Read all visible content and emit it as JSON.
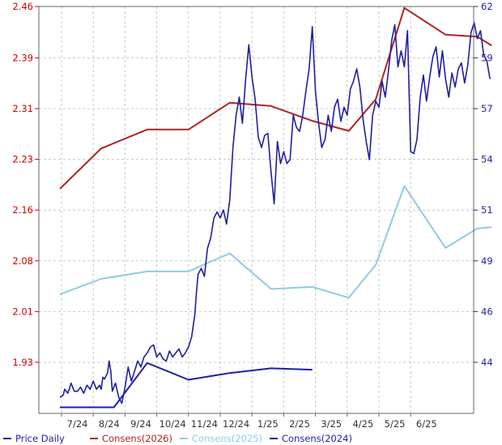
{
  "chart_data": {
    "type": "line",
    "x_ticks": [
      "7/24",
      "8/24",
      "9/24",
      "10/24",
      "11/24",
      "12/24",
      "1/25",
      "2/25",
      "3/25",
      "4/25",
      "5/25",
      "6/25"
    ],
    "y_left": {
      "ylim": [
        1.855,
        2.46
      ],
      "ticks": [
        "1.93",
        "2.01",
        "2.08",
        "2.16",
        "2.23",
        "2.31",
        "2.39",
        "2.46"
      ]
    },
    "y_right": {
      "ylim": [
        41.8,
        62
      ],
      "ticks": [
        "44",
        "46",
        "49",
        "51",
        "54",
        "57",
        "59",
        "62"
      ]
    },
    "grid": true,
    "legend_position": "bottom",
    "colors": {
      "price": "#1f1f9f",
      "consens_2026": "#b22222",
      "consens_2025": "#8dcde0",
      "consens_2024": "#1f1f9f",
      "left_axis": "#cc0000",
      "right_axis": "#1f1f9f",
      "grid": "#c8c8c8"
    },
    "series": [
      {
        "name": "Price Daily",
        "key": "price",
        "axis": "right",
        "values": [
          [
            6.9,
            42.6
          ],
          [
            7.1,
            42.7
          ],
          [
            7.2,
            43.0
          ],
          [
            7.4,
            42.8
          ],
          [
            7.6,
            43.3
          ],
          [
            7.8,
            42.9
          ],
          [
            8.0,
            42.9
          ],
          [
            8.2,
            43.1
          ],
          [
            8.4,
            42.8
          ],
          [
            8.6,
            43.2
          ],
          [
            8.8,
            43.0
          ],
          [
            9.0,
            43.4
          ],
          [
            9.2,
            43.0
          ],
          [
            9.4,
            43.2
          ],
          [
            9.5,
            43.0
          ],
          [
            9.6,
            43.6
          ],
          [
            9.7,
            43.5
          ],
          [
            9.9,
            43.8
          ],
          [
            10.0,
            44.4
          ],
          [
            10.1,
            43.9
          ],
          [
            10.2,
            42.9
          ],
          [
            10.4,
            43.3
          ],
          [
            10.6,
            42.6
          ],
          [
            10.8,
            42.3
          ],
          [
            11.0,
            43.1
          ],
          [
            11.2,
            44.1
          ],
          [
            11.4,
            43.4
          ],
          [
            11.6,
            43.9
          ],
          [
            11.8,
            44.4
          ],
          [
            12.0,
            44.1
          ],
          [
            12.2,
            44.6
          ],
          [
            12.4,
            44.8
          ],
          [
            12.6,
            45.1
          ],
          [
            12.8,
            45.2
          ],
          [
            13.0,
            44.6
          ],
          [
            13.2,
            44.8
          ],
          [
            13.4,
            44.5
          ],
          [
            13.6,
            44.4
          ],
          [
            13.8,
            44.9
          ],
          [
            14.0,
            44.6
          ],
          [
            14.2,
            44.8
          ],
          [
            14.4,
            45.0
          ],
          [
            14.6,
            44.6
          ],
          [
            14.8,
            44.8
          ],
          [
            15.0,
            45.1
          ],
          [
            15.2,
            45.6
          ],
          [
            15.4,
            46.7
          ],
          [
            15.5,
            47.8
          ],
          [
            15.6,
            48.7
          ],
          [
            15.8,
            49.0
          ],
          [
            16.0,
            48.6
          ],
          [
            16.2,
            50.0
          ],
          [
            16.4,
            50.5
          ],
          [
            16.6,
            51.5
          ],
          [
            16.8,
            51.8
          ],
          [
            17.0,
            51.5
          ],
          [
            17.2,
            51.9
          ],
          [
            17.4,
            51.2
          ],
          [
            17.6,
            52.4
          ],
          [
            17.8,
            55.0
          ],
          [
            18.0,
            56.6
          ],
          [
            18.2,
            57.5
          ],
          [
            18.4,
            56.2
          ],
          [
            18.6,
            58.4
          ],
          [
            18.8,
            60.1
          ],
          [
            19.0,
            58.5
          ],
          [
            19.2,
            57.4
          ],
          [
            19.4,
            55.5
          ],
          [
            19.6,
            55.0
          ],
          [
            19.8,
            55.6
          ],
          [
            20.0,
            55.7
          ],
          [
            20.2,
            53.8
          ],
          [
            20.4,
            52.2
          ],
          [
            20.6,
            55.3
          ],
          [
            20.8,
            54.2
          ],
          [
            21.0,
            54.8
          ],
          [
            21.2,
            54.2
          ],
          [
            21.4,
            54.4
          ],
          [
            21.6,
            56.6
          ],
          [
            21.8,
            56.0
          ],
          [
            22.0,
            55.8
          ],
          [
            22.2,
            56.6
          ],
          [
            22.4,
            57.8
          ],
          [
            22.6,
            58.9
          ],
          [
            22.8,
            61.0
          ],
          [
            23.0,
            57.8
          ],
          [
            23.2,
            56.2
          ],
          [
            23.4,
            55.0
          ],
          [
            23.6,
            55.4
          ],
          [
            23.8,
            56.6
          ],
          [
            24.0,
            55.8
          ],
          [
            24.2,
            57.0
          ],
          [
            24.4,
            57.4
          ],
          [
            24.6,
            56.3
          ],
          [
            24.8,
            57.0
          ],
          [
            25.0,
            56.6
          ],
          [
            25.2,
            57.9
          ],
          [
            25.4,
            58.3
          ],
          [
            25.6,
            58.9
          ],
          [
            25.8,
            58.0
          ],
          [
            26.0,
            56.4
          ],
          [
            26.2,
            55.3
          ],
          [
            26.4,
            54.4
          ],
          [
            26.6,
            56.6
          ],
          [
            26.8,
            57.3
          ],
          [
            27.0,
            57.0
          ],
          [
            27.2,
            58.3
          ],
          [
            27.4,
            57.5
          ],
          [
            27.6,
            58.8
          ],
          [
            27.8,
            60.3
          ],
          [
            28.0,
            61.1
          ],
          [
            28.2,
            59.0
          ],
          [
            28.4,
            59.8
          ],
          [
            28.6,
            59.0
          ],
          [
            28.8,
            60.8
          ],
          [
            29.0,
            54.8
          ],
          [
            29.2,
            54.7
          ],
          [
            29.4,
            55.4
          ],
          [
            29.6,
            57.5
          ],
          [
            29.8,
            58.6
          ],
          [
            30.0,
            57.3
          ],
          [
            30.2,
            58.5
          ],
          [
            30.4,
            59.5
          ],
          [
            30.6,
            60.0
          ],
          [
            30.8,
            58.5
          ],
          [
            31.0,
            59.8
          ],
          [
            31.2,
            58.4
          ],
          [
            31.4,
            57.5
          ],
          [
            31.6,
            58.7
          ],
          [
            31.8,
            58.0
          ],
          [
            32.0,
            58.9
          ],
          [
            32.2,
            59.2
          ],
          [
            32.4,
            58.2
          ],
          [
            32.6,
            59.1
          ],
          [
            32.8,
            60.7
          ],
          [
            33.0,
            61.2
          ],
          [
            33.2,
            60.4
          ],
          [
            33.4,
            60.8
          ],
          [
            33.6,
            59.6
          ],
          [
            33.8,
            59.3
          ],
          [
            34.0,
            58.4
          ]
        ]
      },
      {
        "name": "Consens(2026)",
        "key": "consens_2026",
        "axis": "left",
        "values": [
          [
            6.9,
            2.189
          ],
          [
            9.5,
            2.249
          ],
          [
            12.4,
            2.277
          ],
          [
            15.0,
            2.277
          ],
          [
            17.6,
            2.317
          ],
          [
            20.2,
            2.312
          ],
          [
            22.8,
            2.29
          ],
          [
            25.1,
            2.275
          ],
          [
            26.8,
            2.322
          ],
          [
            28.6,
            2.458
          ],
          [
            31.2,
            2.418
          ],
          [
            33.2,
            2.415
          ],
          [
            34.1,
            2.402
          ]
        ]
      },
      {
        "name": "Consens(2025)",
        "key": "consens_2025",
        "axis": "left",
        "values": [
          [
            6.9,
            2.032
          ],
          [
            9.5,
            2.055
          ],
          [
            12.4,
            2.066
          ],
          [
            15.0,
            2.066
          ],
          [
            17.6,
            2.093
          ],
          [
            20.2,
            2.04
          ],
          [
            22.8,
            2.043
          ],
          [
            25.1,
            2.027
          ],
          [
            26.8,
            2.076
          ],
          [
            28.6,
            2.193
          ],
          [
            31.2,
            2.101
          ],
          [
            33.2,
            2.13
          ],
          [
            34.1,
            2.132
          ]
        ]
      },
      {
        "name": "Consens(2024)",
        "key": "consens_2024",
        "axis": "left",
        "values": [
          [
            6.9,
            1.864
          ],
          [
            10.3,
            1.864
          ],
          [
            12.4,
            1.93
          ],
          [
            15.0,
            1.905
          ],
          [
            17.6,
            1.915
          ],
          [
            20.2,
            1.922
          ],
          [
            22.8,
            1.92
          ]
        ]
      }
    ]
  }
}
